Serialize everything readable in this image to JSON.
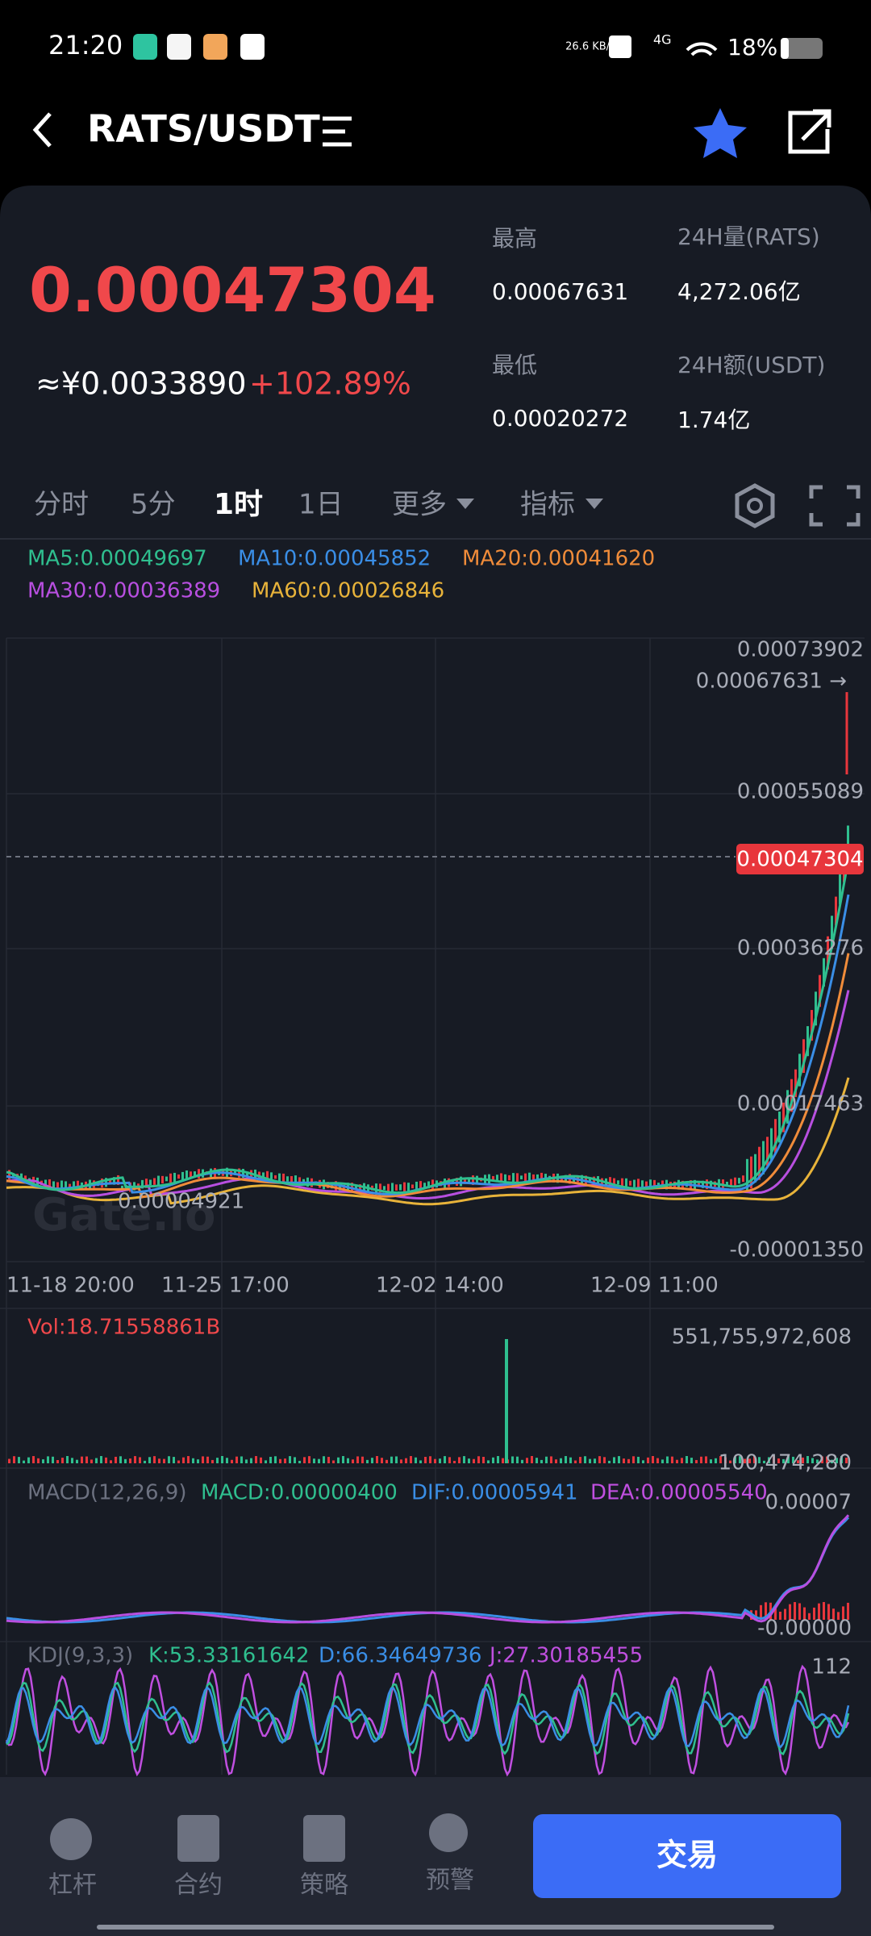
{
  "status_bar": {
    "time": "21:20",
    "network_speed": "26.6 KB/s",
    "signal": "4G",
    "battery": "18%"
  },
  "header": {
    "title": "RATS/USDT"
  },
  "ticker": {
    "price": "0.00047304",
    "cny_price": "≈¥0.0033890",
    "change": "+102.89%",
    "stats": [
      {
        "label": "最高",
        "value": "0.00067631"
      },
      {
        "label": "24H量(RATS)",
        "value": "4,272.06亿"
      },
      {
        "label": "最低",
        "value": "0.00020272"
      },
      {
        "label": "24H额(USDT)",
        "value": "1.74亿"
      }
    ]
  },
  "tabs": [
    "分时",
    "5分",
    "1时",
    "1日",
    "更多",
    "指标"
  ],
  "ma": [
    "MA5:0.00049697",
    "MA10:0.00045852",
    "MA20:0.00041620",
    "MA30:0.00036389",
    "MA60:0.00026846"
  ],
  "price_axis": [
    "0.00073902",
    "0.00067631 →",
    "0.00055089",
    "0.00036276",
    "0.00017463",
    "-0.00001350"
  ],
  "current_price_tag": "0.00047304",
  "low_marker": "0.00004921",
  "watermark": "Gate.io",
  "time_axis": [
    "11-18 20:00",
    "11-25 17:00",
    "12-02 14:00",
    "12-09 11:00"
  ],
  "volume": {
    "label": "Vol:18.71558861B",
    "max": "551,755,972,608",
    "min": "100,474,280"
  },
  "macd": {
    "label": "MACD(12,26,9)",
    "macd": "MACD:0.00000400",
    "dif": "DIF:0.00005941",
    "dea": "DEA:0.00005540",
    "max": "0.00007",
    "min": "-0.00000"
  },
  "kdj": {
    "label": "KDJ(9,3,3)",
    "k": "K:53.33161642",
    "d": "D:66.34649736",
    "j": "J:27.30185455",
    "max": "112"
  },
  "nav": [
    "杠杆",
    "合约",
    "策略",
    "预警"
  ],
  "trade_button": "交易"
}
